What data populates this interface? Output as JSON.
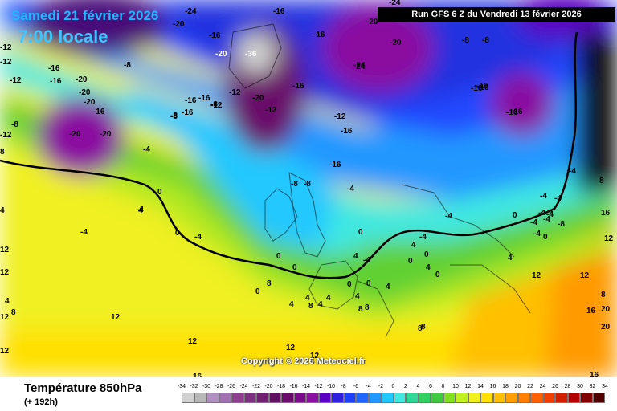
{
  "header": {
    "date": "Samedi 21 février 2026",
    "time": "7:00 locale",
    "run": "Run GFS 6 Z du Vendredi 13 février 2026"
  },
  "footer": {
    "parameter": "Température 850hPa",
    "lead_time": "(+ 192h)",
    "copyright": "Copyright © 2026 Meteociel.fr"
  },
  "legend": {
    "ticks": [
      "-34",
      "-32",
      "-30",
      "-28",
      "-26",
      "-24",
      "-22",
      "-20",
      "-18",
      "-16",
      "-14",
      "-12",
      "-10",
      "-8",
      "-6",
      "-4",
      "-2",
      "0",
      "2",
      "4",
      "6",
      "8",
      "10",
      "12",
      "14",
      "16",
      "18",
      "20",
      "22",
      "24",
      "26",
      "28",
      "30",
      "32",
      "34"
    ],
    "colors": [
      "#d0d0d0",
      "#b8b8b8",
      "#b090c0",
      "#a070b0",
      "#904090",
      "#803080",
      "#702070",
      "#601060",
      "#6a0a6a",
      "#7a0a8a",
      "#8a10a0",
      "#5a00c0",
      "#3020e0",
      "#2040ff",
      "#2068ff",
      "#2098ff",
      "#20c8ff",
      "#40e8e0",
      "#30d898",
      "#30d060",
      "#40c840",
      "#80e020",
      "#c0f020",
      "#f0f020",
      "#ffe000",
      "#ffc000",
      "#ffa000",
      "#ff8000",
      "#ff6000",
      "#f04000",
      "#d02000",
      "#b00000",
      "#800000",
      "#500000"
    ]
  },
  "map": {
    "temperature_labels": [
      "-24",
      "-20",
      "-16",
      "-16",
      "-24",
      "-20",
      "-12",
      "-16",
      "-20",
      "-12",
      "-8",
      "-20",
      "-24",
      "-8",
      "-8",
      "-16",
      "-12",
      "-8",
      "-12",
      "-16",
      "-20",
      "-16",
      "-20",
      "-16",
      "-20",
      "-20",
      "-24",
      "-16",
      "-12",
      "-16",
      "-12",
      "-16",
      "-8",
      "-8",
      "-16",
      "-20",
      "-20",
      "-12",
      "-16",
      "-16",
      "-16",
      "-12",
      "-16",
      "-8",
      "-16",
      "-4",
      "0",
      "-8",
      "-8",
      "-16",
      "-4",
      "-4",
      "-4",
      "0",
      "-4",
      "-4",
      "0",
      "-4",
      "-4",
      "-4",
      "-4",
      "-4",
      "-4",
      "0",
      "-4",
      "-4",
      "0",
      "4",
      "0",
      "0",
      "0",
      "4",
      "0",
      "4",
      "0",
      "0",
      "4",
      "0",
      "12",
      "8",
      "8",
      "4",
      "4",
      "4",
      "4",
      "8",
      "8",
      "4",
      "4",
      "12",
      "8",
      "8",
      "12",
      "12",
      "12",
      "8",
      "16",
      "16",
      "20",
      "20",
      "16",
      "12",
      "16",
      "12",
      "8",
      "12",
      "8",
      "4",
      "4",
      "0",
      "-4",
      "-4",
      "-8",
      "8",
      "4",
      "12",
      "12",
      "12",
      "16"
    ],
    "contour_min_label": "-36",
    "notes": "GFS 850hPa temperature forecast over North Atlantic and Europe"
  }
}
